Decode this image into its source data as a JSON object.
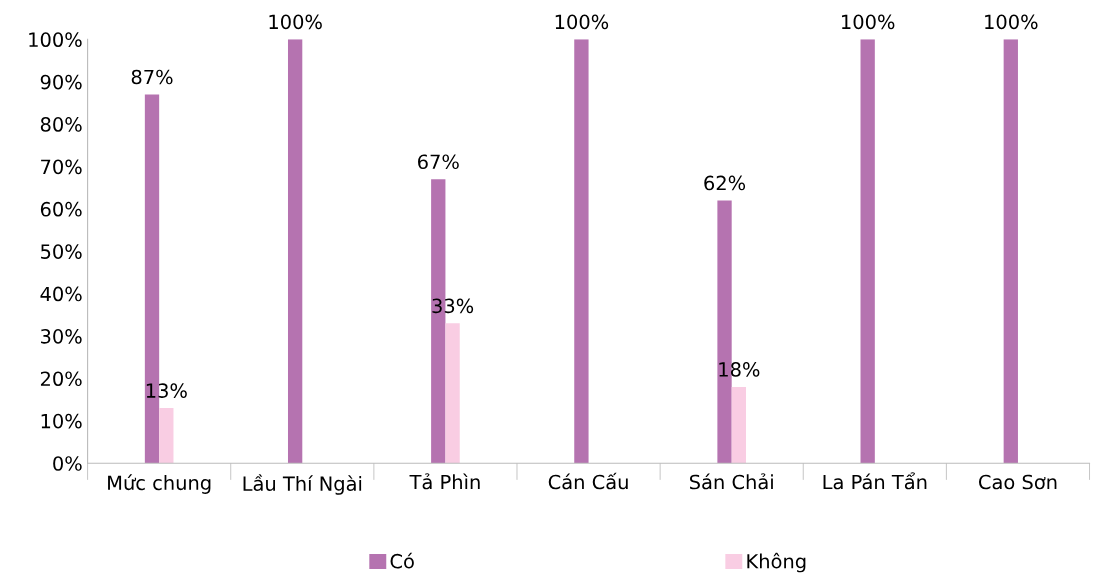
{
  "chart_data": {
    "type": "bar",
    "categories": [
      "Mức chung",
      "Lầu Thí Ngài",
      "Tả Phìn",
      "Cán Cấu",
      "Sán Chải",
      "La Pán Tẩn",
      "Cao Sơn"
    ],
    "series": [
      {
        "name": "Có",
        "color": "#b573b0",
        "values": [
          87,
          100,
          67,
          100,
          62,
          100,
          100
        ],
        "value_labels": [
          "87%",
          "100%",
          "67%",
          "100%",
          "62%",
          "100%",
          "100%"
        ]
      },
      {
        "name": "Không",
        "color": "#f9cde3",
        "values": [
          13,
          null,
          33,
          null,
          18,
          null,
          null
        ],
        "value_labels": [
          "13%",
          null,
          "33%",
          null,
          "18%",
          null,
          null
        ]
      }
    ],
    "ylim": [
      0,
      100
    ],
    "yticks": [
      {
        "value": 0,
        "label": "0%"
      },
      {
        "value": 10,
        "label": "10%"
      },
      {
        "value": 20,
        "label": "20%"
      },
      {
        "value": 30,
        "label": "30%"
      },
      {
        "value": 40,
        "label": "40%"
      },
      {
        "value": 50,
        "label": "50%"
      },
      {
        "value": 60,
        "label": "60%"
      },
      {
        "value": 70,
        "label": "70%"
      },
      {
        "value": 80,
        "label": "80%"
      },
      {
        "value": 90,
        "label": "90%"
      },
      {
        "value": 100,
        "label": "100%"
      }
    ],
    "grid": false,
    "legend": "bottom"
  }
}
